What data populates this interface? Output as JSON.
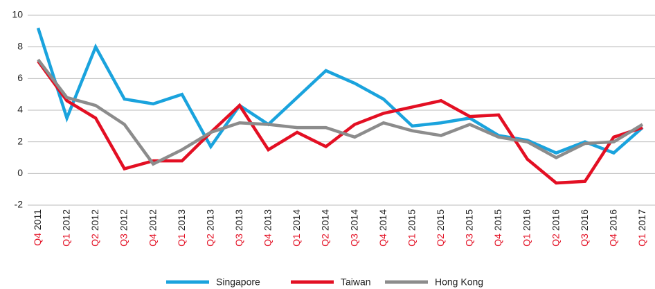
{
  "chart_data": {
    "type": "line",
    "categories": [
      "Q4 2011",
      "Q1 2012",
      "Q2 2012",
      "Q3 2012",
      "Q4 2012",
      "Q1 2013",
      "Q2 2013",
      "Q3 2013",
      "Q4 2013",
      "Q1 2014",
      "Q2 2014",
      "Q3 2014",
      "Q4 2014",
      "Q1 2015",
      "Q2 2015",
      "Q3 2015",
      "Q4 2015",
      "Q1 2016",
      "Q2 2016",
      "Q3 2016",
      "Q4 2016",
      "Q1 2017"
    ],
    "series": [
      {
        "name": "Singapore",
        "color": "#1aa3dd",
        "values": [
          9.2,
          3.5,
          8.0,
          4.7,
          4.4,
          5.0,
          1.7,
          4.3,
          3.1,
          4.8,
          6.5,
          5.7,
          4.7,
          3.0,
          3.2,
          3.5,
          2.4,
          2.1,
          1.3,
          2.0,
          1.3,
          2.9
        ]
      },
      {
        "name": "Taiwan",
        "color": "#e30f23",
        "values": [
          7.1,
          4.6,
          3.5,
          0.3,
          0.8,
          0.8,
          2.6,
          4.3,
          1.5,
          2.6,
          1.7,
          3.1,
          3.8,
          4.2,
          4.6,
          3.6,
          3.7,
          0.9,
          -0.6,
          -0.5,
          2.3,
          2.9
        ]
      },
      {
        "name": "Hong Kong",
        "color": "#8c8c8c",
        "values": [
          7.2,
          4.8,
          4.3,
          3.1,
          0.6,
          1.5,
          2.6,
          3.2,
          3.1,
          2.9,
          2.9,
          2.3,
          3.2,
          2.7,
          2.4,
          3.1,
          2.3,
          2.0,
          1.0,
          1.9,
          2.0,
          3.1
        ]
      }
    ],
    "ylim": [
      -2,
      10
    ],
    "yticks": [
      -2,
      0,
      2,
      4,
      6,
      8,
      10
    ],
    "grid": true,
    "legend": "bottom",
    "category_prefix_color": "#e30f23"
  }
}
